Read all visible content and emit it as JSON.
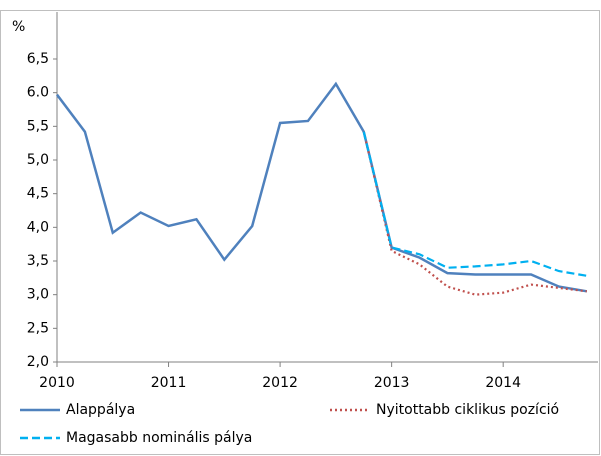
{
  "chart_data": {
    "type": "line",
    "y_label": "%",
    "x": [
      2010,
      2010.25,
      2010.5,
      2010.75,
      2011,
      2011.25,
      2011.5,
      2011.75,
      2012,
      2012.25,
      2012.5,
      2012.75,
      2013,
      2013.25,
      2013.5,
      2013.75,
      2014,
      2014.25,
      2014.5,
      2014.75
    ],
    "series": [
      {
        "name": "Alappálya",
        "color": "#4f81bd",
        "dash": "solid",
        "values": [
          5.97,
          5.42,
          3.92,
          4.22,
          4.02,
          4.12,
          3.52,
          4.02,
          5.55,
          5.58,
          6.13,
          5.42,
          3.7,
          3.55,
          3.32,
          3.3,
          3.3,
          3.3,
          3.12,
          3.05
        ]
      },
      {
        "name": "Nyitottabb ciklikus pozíció",
        "color": "#c0504d",
        "dash": "dotted",
        "values": [
          null,
          null,
          null,
          null,
          null,
          null,
          null,
          null,
          null,
          null,
          null,
          5.42,
          3.65,
          3.45,
          3.12,
          3.0,
          3.03,
          3.15,
          3.1,
          3.05
        ]
      },
      {
        "name": "Magasabb nominális pálya",
        "color": "#00b0f0",
        "dash": "dashed",
        "values": [
          null,
          null,
          null,
          null,
          null,
          null,
          null,
          null,
          null,
          null,
          null,
          5.42,
          3.7,
          3.6,
          3.4,
          3.42,
          3.45,
          3.5,
          3.35,
          3.28
        ]
      }
    ],
    "xlim": [
      2010,
      2014.85
    ],
    "xticks": [
      2010,
      2011,
      2012,
      2013,
      2014
    ],
    "ylim": [
      2.0,
      6.5
    ],
    "yticks": [
      {
        "value": 2.0,
        "label": "2,0"
      },
      {
        "value": 2.5,
        "label": "2,5"
      },
      {
        "value": 3.0,
        "label": "3,0"
      },
      {
        "value": 3.5,
        "label": "3,5"
      },
      {
        "value": 4.0,
        "label": "4,0"
      },
      {
        "value": 4.5,
        "label": "4,5"
      },
      {
        "value": 5.0,
        "label": "5,0"
      },
      {
        "value": 5.5,
        "label": "5,5"
      },
      {
        "value": 6.0,
        "label": "6.0"
      },
      {
        "value": 6.5,
        "label": "6,5"
      }
    ],
    "grid": false
  }
}
